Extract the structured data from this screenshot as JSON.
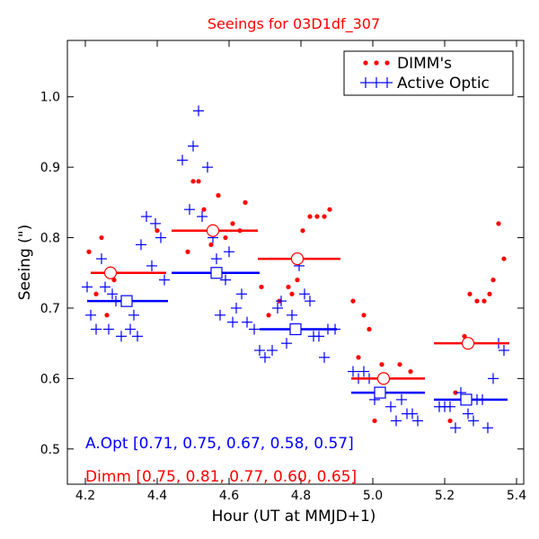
{
  "chart_data": {
    "type": "scatter",
    "title": "Seeings for 03D1df_307",
    "xlabel": "Hour (UT at MMJD+1)",
    "ylabel": "Seeing (\")",
    "xlim": [
      4.15,
      5.42
    ],
    "ylim": [
      0.45,
      1.08
    ],
    "xticks": [
      4.2,
      4.4,
      4.6,
      4.8,
      5.0,
      5.2,
      5.4
    ],
    "xtick_labels": [
      "4.2",
      "4.4",
      "4.6",
      "4.8",
      "5.0",
      "5.2",
      "5.4"
    ],
    "yticks": [
      0.5,
      0.6,
      0.7,
      0.8,
      0.9,
      1.0
    ],
    "ytick_labels": [
      "0.5",
      "0.6",
      "0.7",
      "0.8",
      "0.9",
      "1.0"
    ],
    "legend_position": "top-right",
    "grid": false,
    "colors": {
      "dimm": "#ff0000",
      "aopt": "#0000ff",
      "axis": "#000000"
    },
    "series": [
      {
        "name": "DIMM's",
        "legend_label": "DIMM's",
        "marker": "dot",
        "x": [
          4.21,
          4.23,
          4.245,
          4.26,
          4.28,
          4.4,
          4.485,
          4.5,
          4.515,
          4.53,
          4.55,
          4.57,
          4.59,
          4.61,
          4.63,
          4.645,
          4.69,
          4.71,
          4.74,
          4.765,
          4.775,
          4.79,
          4.805,
          4.825,
          4.845,
          4.865,
          4.88,
          4.945,
          4.96,
          4.975,
          4.99,
          5.005,
          5.025,
          5.04,
          5.075,
          5.105,
          5.215,
          5.23,
          5.255,
          5.27,
          5.29,
          5.31,
          5.325,
          5.335,
          5.35,
          5.365
        ],
        "y": [
          0.78,
          0.72,
          0.8,
          0.69,
          0.74,
          0.81,
          0.78,
          0.88,
          0.88,
          0.84,
          0.79,
          0.86,
          0.8,
          0.82,
          0.81,
          0.85,
          0.73,
          0.69,
          0.71,
          0.73,
          0.72,
          0.74,
          0.81,
          0.83,
          0.83,
          0.83,
          0.84,
          0.71,
          0.63,
          0.69,
          0.67,
          0.54,
          0.62,
          0.6,
          0.62,
          0.61,
          0.54,
          0.58,
          0.66,
          0.72,
          0.71,
          0.71,
          0.72,
          0.74,
          0.82,
          0.77
        ],
        "binned_x": [
          4.27,
          4.555,
          4.79,
          5.03,
          5.265
        ],
        "binned_values": [
          0.75,
          0.81,
          0.77,
          0.6,
          0.65
        ],
        "bin_ranges": [
          [
            4.215,
            4.425
          ],
          [
            4.44,
            4.68
          ],
          [
            4.68,
            4.91
          ],
          [
            4.94,
            5.145
          ],
          [
            5.17,
            5.38
          ]
        ]
      },
      {
        "name": "Active Optic",
        "legend_label": "Active Optic",
        "marker": "plus",
        "x": [
          4.205,
          4.215,
          4.23,
          4.245,
          4.255,
          4.265,
          4.275,
          4.285,
          4.3,
          4.325,
          4.335,
          4.345,
          4.355,
          4.37,
          4.385,
          4.395,
          4.41,
          4.42,
          4.47,
          4.49,
          4.5,
          4.515,
          4.525,
          4.54,
          4.555,
          4.565,
          4.575,
          4.59,
          4.6,
          4.61,
          4.62,
          4.635,
          4.65,
          4.67,
          4.685,
          4.7,
          4.72,
          4.735,
          4.745,
          4.76,
          4.775,
          4.795,
          4.81,
          4.825,
          4.835,
          4.85,
          4.865,
          4.875,
          4.895,
          4.945,
          4.96,
          4.975,
          4.99,
          5.005,
          5.02,
          5.035,
          5.05,
          5.065,
          5.08,
          5.095,
          5.11,
          5.125,
          5.185,
          5.2,
          5.215,
          5.23,
          5.245,
          5.265,
          5.28,
          5.29,
          5.305,
          5.32,
          5.335,
          5.35,
          5.365
        ],
        "y": [
          0.73,
          0.69,
          0.67,
          0.77,
          0.73,
          0.67,
          0.72,
          0.71,
          0.66,
          0.67,
          0.69,
          0.66,
          0.79,
          0.83,
          0.76,
          0.82,
          0.8,
          0.74,
          0.91,
          0.84,
          0.93,
          0.98,
          0.83,
          0.9,
          0.8,
          0.77,
          0.69,
          0.74,
          0.78,
          0.68,
          0.7,
          0.72,
          0.68,
          0.67,
          0.64,
          0.63,
          0.64,
          0.7,
          0.71,
          0.65,
          0.69,
          0.76,
          0.72,
          0.71,
          0.66,
          0.66,
          0.63,
          0.67,
          0.67,
          0.61,
          0.6,
          0.61,
          0.6,
          0.57,
          0.58,
          0.6,
          0.56,
          0.54,
          0.57,
          0.55,
          0.55,
          0.54,
          0.56,
          0.56,
          0.56,
          0.53,
          0.58,
          0.55,
          0.54,
          0.57,
          0.57,
          0.53,
          0.6,
          0.65,
          0.64
        ],
        "binned_x": [
          4.315,
          4.565,
          4.785,
          5.02,
          5.26
        ],
        "binned_values": [
          0.71,
          0.75,
          0.67,
          0.58,
          0.57
        ],
        "bin_ranges": [
          [
            4.205,
            4.43
          ],
          [
            4.44,
            4.685
          ],
          [
            4.685,
            4.9
          ],
          [
            4.94,
            5.145
          ],
          [
            5.17,
            5.375
          ]
        ]
      }
    ],
    "annotations": [
      {
        "name": "aopt-summary",
        "text": "A.Opt [0.71, 0.75, 0.67, 0.58, 0.57]",
        "color": "#0000ff"
      },
      {
        "name": "dimm-summary",
        "text": "Dimm [0.75, 0.81, 0.77, 0.60, 0.65]",
        "color": "#ff0000"
      }
    ]
  }
}
